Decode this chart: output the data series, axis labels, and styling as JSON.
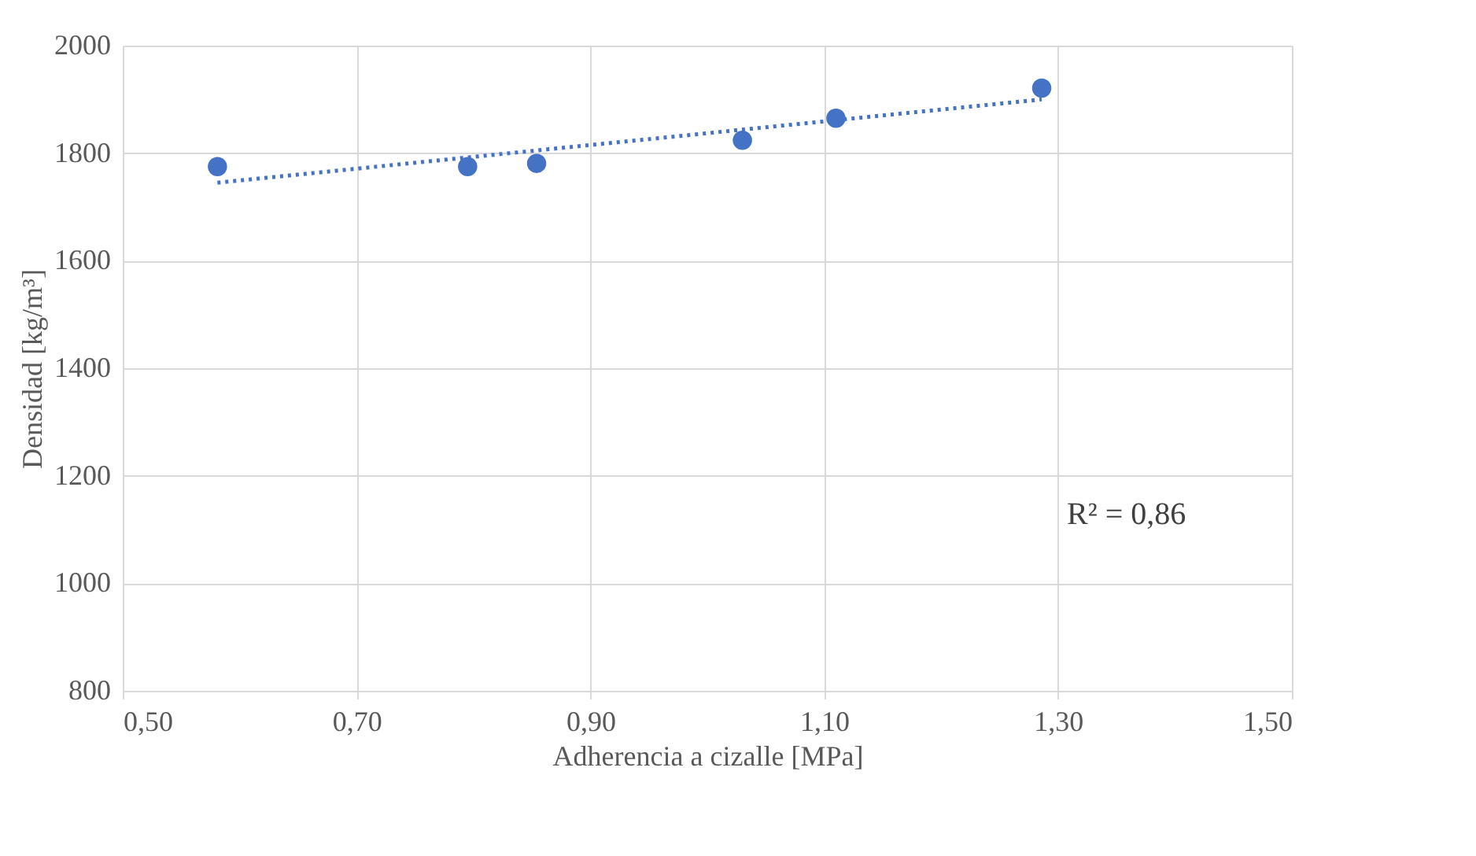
{
  "chart_data": {
    "type": "scatter",
    "xlabel": "Adherencia a cizalle [MPa]",
    "ylabel": "Densidad [kg/m³]",
    "series": [
      {
        "color": "#4472c4",
        "marker": "circle",
        "x": [
          0.581,
          0.795,
          0.854,
          1.03,
          1.11,
          1.286
        ],
        "values": [
          1775,
          1775,
          1781,
          1824,
          1865,
          1921
        ]
      },
      {
        "type": "line",
        "color": "#4472c4",
        "line_style": "dotted",
        "x": [
          0.581,
          1.286
        ],
        "values": [
          1745,
          1900
        ]
      }
    ],
    "xlim": [
      0.5,
      1.5
    ],
    "ylim": [
      800,
      2000
    ],
    "xticks": [
      {
        "value": 0.5,
        "label": "0,50"
      },
      {
        "value": 0.7,
        "label": "0,70"
      },
      {
        "value": 0.9,
        "label": "0,90"
      },
      {
        "value": 1.1,
        "label": "1,10"
      },
      {
        "value": 1.3,
        "label": "1,30"
      },
      {
        "value": 1.5,
        "label": "1,50"
      }
    ],
    "yticks": [
      800,
      1000,
      1200,
      1400,
      1600,
      1800,
      2000
    ],
    "grid": true,
    "legend": false,
    "annotations": [
      "R² = 0,86"
    ]
  }
}
